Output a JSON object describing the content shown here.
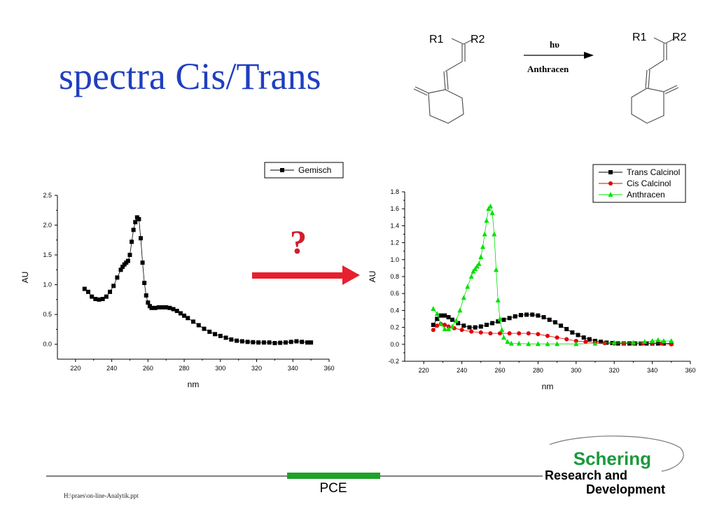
{
  "slide": {
    "title": "spectra Cis/Trans",
    "question_mark": "?",
    "footer_path": "H:\\praes\\on-line-Analytik.ppt",
    "footer_center": "PCE",
    "logo": {
      "line1": "Schering",
      "line2": "Research and",
      "line3": "Development"
    }
  },
  "reaction": {
    "r1": "R1",
    "r2": "R2",
    "above_arrow": "hυ",
    "below_arrow": "Anthracen"
  },
  "colors": {
    "title": "#1f3fbf",
    "arrow": "#e8202e",
    "question": "#d21d2c",
    "pce_bar": "#1fa12a",
    "schering": "#1a9a3c"
  },
  "chart_data": [
    {
      "type": "scatter",
      "xlabel": "nm",
      "ylabel": "AU",
      "xlim": [
        210,
        360
      ],
      "ylim": [
        -0.25,
        2.5
      ],
      "xticks": [
        220,
        240,
        260,
        280,
        300,
        320,
        340,
        360
      ],
      "yticks": [
        0.0,
        0.5,
        1.0,
        1.5,
        2.0,
        2.5
      ],
      "ytick_labels": [
        "0.0",
        "0.5",
        "1.0",
        "1.5",
        "2.0",
        "2.5"
      ],
      "legend_position": "top-right",
      "series": [
        {
          "name": "Gemisch",
          "color": "#000000",
          "marker": "square",
          "x": [
            225,
            227,
            229,
            231,
            233,
            235,
            237,
            239,
            241,
            243,
            245,
            246,
            247,
            248,
            249,
            250,
            251,
            252,
            253,
            254,
            255,
            256,
            257,
            258,
            259,
            260,
            261,
            262,
            264,
            266,
            268,
            270,
            272,
            274,
            276,
            278,
            280,
            282,
            285,
            288,
            291,
            294,
            297,
            300,
            303,
            306,
            309,
            312,
            315,
            318,
            321,
            324,
            327,
            330,
            333,
            336,
            339,
            342,
            345,
            348,
            350
          ],
          "y": [
            0.93,
            0.88,
            0.8,
            0.76,
            0.75,
            0.76,
            0.8,
            0.88,
            0.98,
            1.12,
            1.25,
            1.3,
            1.34,
            1.37,
            1.4,
            1.5,
            1.72,
            1.92,
            2.05,
            2.13,
            2.1,
            1.78,
            1.37,
            1.03,
            0.82,
            0.7,
            0.64,
            0.61,
            0.61,
            0.62,
            0.62,
            0.62,
            0.61,
            0.59,
            0.56,
            0.52,
            0.48,
            0.44,
            0.38,
            0.32,
            0.26,
            0.21,
            0.17,
            0.14,
            0.11,
            0.08,
            0.06,
            0.05,
            0.04,
            0.035,
            0.03,
            0.03,
            0.03,
            0.02,
            0.025,
            0.03,
            0.04,
            0.05,
            0.04,
            0.03,
            0.03
          ]
        }
      ]
    },
    {
      "type": "line",
      "xlabel": "nm",
      "ylabel": "AU",
      "xlim": [
        210,
        360
      ],
      "ylim": [
        -0.2,
        1.8
      ],
      "xticks": [
        220,
        240,
        260,
        280,
        300,
        320,
        340,
        360
      ],
      "yticks": [
        -0.2,
        0.0,
        0.2,
        0.4,
        0.6,
        0.8,
        1.0,
        1.2,
        1.4,
        1.6,
        1.8
      ],
      "ytick_labels": [
        "-0.2",
        "0.0",
        "0.2",
        "0.4",
        "0.6",
        "0.8",
        "1.0",
        "1.2",
        "1.4",
        "1.6",
        "1.8"
      ],
      "legend_position": "top-right",
      "series": [
        {
          "name": "Trans Calcinol",
          "color": "#000000",
          "marker": "square",
          "x": [
            225,
            227,
            229,
            231,
            233,
            235,
            238,
            241,
            244,
            247,
            250,
            253,
            256,
            259,
            262,
            265,
            268,
            271,
            274,
            277,
            280,
            283,
            286,
            289,
            292,
            295,
            298,
            301,
            304,
            307,
            310,
            313,
            316,
            319,
            322,
            325,
            328,
            331,
            334,
            337,
            340,
            343,
            346,
            350
          ],
          "y": [
            0.23,
            0.3,
            0.34,
            0.34,
            0.32,
            0.29,
            0.25,
            0.22,
            0.2,
            0.2,
            0.21,
            0.23,
            0.25,
            0.27,
            0.29,
            0.31,
            0.33,
            0.345,
            0.35,
            0.35,
            0.34,
            0.32,
            0.29,
            0.26,
            0.22,
            0.18,
            0.14,
            0.11,
            0.08,
            0.06,
            0.04,
            0.03,
            0.02,
            0.015,
            0.01,
            0.01,
            0.01,
            0.01,
            0.01,
            0.01,
            0.01,
            0.01,
            0.01,
            0.01
          ]
        },
        {
          "name": "Cis Calcinol",
          "color": "#e00000",
          "marker": "circle",
          "x": [
            225,
            227,
            229,
            231,
            233,
            236,
            240,
            245,
            250,
            255,
            260,
            265,
            270,
            275,
            280,
            285,
            290,
            295,
            300,
            305,
            310,
            315,
            320,
            325,
            330,
            335,
            340,
            345,
            350
          ],
          "y": [
            0.17,
            0.22,
            0.24,
            0.23,
            0.21,
            0.19,
            0.17,
            0.15,
            0.14,
            0.13,
            0.13,
            0.13,
            0.13,
            0.13,
            0.12,
            0.1,
            0.08,
            0.06,
            0.04,
            0.03,
            0.02,
            0.015,
            0.01,
            0.01,
            0.01,
            0.01,
            0.015,
            0.01,
            0.0
          ]
        },
        {
          "name": "Anthracen",
          "color": "#00e000",
          "marker": "triangle",
          "x": [
            225,
            227,
            229,
            231,
            233,
            235,
            237,
            239,
            241,
            243,
            245,
            246,
            247,
            248,
            249,
            250,
            251,
            252,
            253,
            254,
            255,
            256,
            257,
            258,
            259,
            260,
            261,
            262,
            264,
            266,
            270,
            275,
            280,
            285,
            290,
            300,
            310,
            320,
            330,
            336,
            340,
            343,
            346,
            350
          ],
          "y": [
            0.42,
            0.36,
            0.24,
            0.18,
            0.18,
            0.21,
            0.28,
            0.4,
            0.55,
            0.68,
            0.8,
            0.86,
            0.89,
            0.92,
            0.95,
            1.03,
            1.15,
            1.3,
            1.46,
            1.6,
            1.63,
            1.55,
            1.3,
            0.88,
            0.52,
            0.3,
            0.17,
            0.08,
            0.03,
            0.01,
            0.01,
            0.005,
            0.005,
            0.005,
            0.005,
            0.005,
            0.01,
            0.02,
            0.02,
            0.03,
            0.04,
            0.05,
            0.04,
            0.04
          ]
        }
      ]
    }
  ]
}
